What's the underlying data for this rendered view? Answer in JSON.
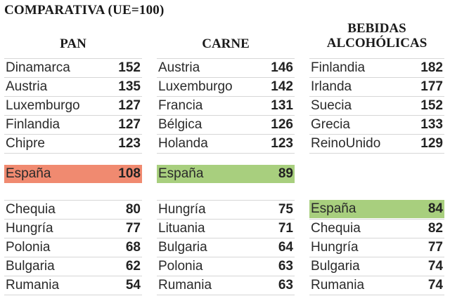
{
  "title": "COMPARATIVA (UE=100)",
  "colors": {
    "spain_bread": "#f08a70",
    "spain_green": "#a8cf7e"
  },
  "chart_data": {
    "type": "table",
    "title": "COMPARATIVA (UE=100)",
    "columns": [
      {
        "label_lines": [
          "PAN"
        ],
        "top": [
          {
            "name": "Dinamarca",
            "value": 152
          },
          {
            "name": "Austria",
            "value": 135
          },
          {
            "name": "Luxemburgo",
            "value": 127
          },
          {
            "name": "Finlandia",
            "value": 127
          },
          {
            "name": "Chipre",
            "value": 123
          }
        ],
        "spain": {
          "name": "España",
          "value": 108,
          "color": "#f08a70"
        },
        "bottom": [
          {
            "name": "Chequia",
            "value": 80
          },
          {
            "name": "Hungría",
            "value": 77
          },
          {
            "name": "Polonia",
            "value": 68
          },
          {
            "name": "Bulgaria",
            "value": 62
          },
          {
            "name": "Rumania",
            "value": 54
          }
        ]
      },
      {
        "label_lines": [
          "CARNE"
        ],
        "top": [
          {
            "name": "Austria",
            "value": 146
          },
          {
            "name": "Luxemburgo",
            "value": 142
          },
          {
            "name": "Francia",
            "value": 131
          },
          {
            "name": "Bélgica",
            "value": 126
          },
          {
            "name": "Holanda",
            "value": 123
          }
        ],
        "spain": {
          "name": "España",
          "value": 89,
          "color": "#a8cf7e"
        },
        "bottom": [
          {
            "name": "Hungría",
            "value": 75
          },
          {
            "name": "Lituania",
            "value": 71
          },
          {
            "name": "Bulgaria",
            "value": 64
          },
          {
            "name": "Polonia",
            "value": 63
          },
          {
            "name": "Rumania",
            "value": 63
          }
        ]
      },
      {
        "label_lines": [
          "BEBIDAS",
          "ALCOHÓLICAS"
        ],
        "top": [
          {
            "name": "Finlandia",
            "value": 182
          },
          {
            "name": "Irlanda",
            "value": 177
          },
          {
            "name": "Suecia",
            "value": 152
          },
          {
            "name": "Grecia",
            "value": 133
          },
          {
            "name": "ReinoUnido",
            "value": 129
          }
        ],
        "bottom": [
          {
            "name": "España",
            "value": 84,
            "highlight": true,
            "color": "#a8cf7e"
          },
          {
            "name": "Chequia",
            "value": 82
          },
          {
            "name": "Hungría",
            "value": 77
          },
          {
            "name": "Bulgaria",
            "value": 74
          },
          {
            "name": "Rumania",
            "value": 74
          }
        ]
      }
    ]
  }
}
